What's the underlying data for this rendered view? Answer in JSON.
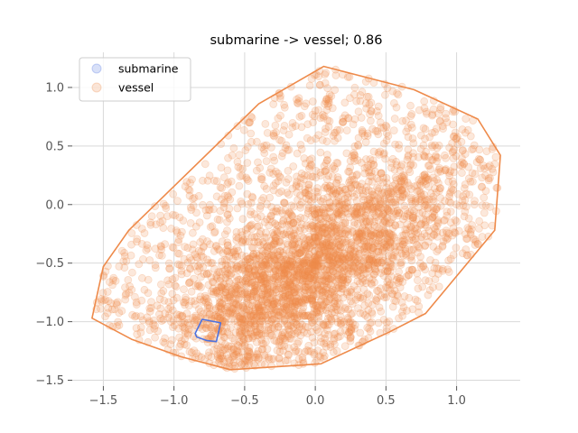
{
  "chart_data": {
    "type": "scatter",
    "title": "submarine -> vessel; 0.86",
    "xlabel": "",
    "ylabel": "",
    "xlim": [
      -1.72,
      1.45
    ],
    "ylim": [
      -1.55,
      1.3
    ],
    "xticks": [
      -1.5,
      -1.0,
      -0.5,
      0.0,
      0.5,
      1.0
    ],
    "xtick_labels": [
      "−1.5",
      "−1.0",
      "−0.5",
      "0.0",
      "0.5",
      "1.0"
    ],
    "yticks": [
      -1.5,
      -1.0,
      -0.5,
      0.0,
      0.5,
      1.0
    ],
    "ytick_labels": [
      "−1.5",
      "−1.0",
      "−0.5",
      "0.0",
      "0.5",
      "1.0"
    ],
    "grid": true,
    "legend_position": "top-left",
    "series": [
      {
        "name": "submarine",
        "color": "#4c72e0",
        "point_alpha": 0.2,
        "hull": [
          [
            -0.85,
            -1.1
          ],
          [
            -0.8,
            -0.98
          ],
          [
            -0.67,
            -1.01
          ],
          [
            -0.7,
            -1.17
          ],
          [
            -0.77,
            -1.16
          ],
          [
            -0.84,
            -1.13
          ]
        ]
      },
      {
        "name": "vessel",
        "color": "#ee8a4a",
        "point_alpha": 0.2,
        "hull": [
          [
            -1.58,
            -0.97
          ],
          [
            -1.5,
            -0.53
          ],
          [
            -1.32,
            -0.22
          ],
          [
            -0.4,
            0.86
          ],
          [
            0.06,
            1.18
          ],
          [
            0.7,
            0.98
          ],
          [
            1.15,
            0.73
          ],
          [
            1.31,
            0.42
          ],
          [
            1.27,
            -0.22
          ],
          [
            0.78,
            -0.93
          ],
          [
            0.52,
            -1.09
          ],
          [
            0.04,
            -1.36
          ],
          [
            -0.6,
            -1.41
          ],
          [
            -0.95,
            -1.3
          ],
          [
            -1.3,
            -1.15
          ]
        ],
        "cluster_center": [
          -0.05,
          -0.55
        ],
        "approx_point_count": 12000
      }
    ]
  }
}
